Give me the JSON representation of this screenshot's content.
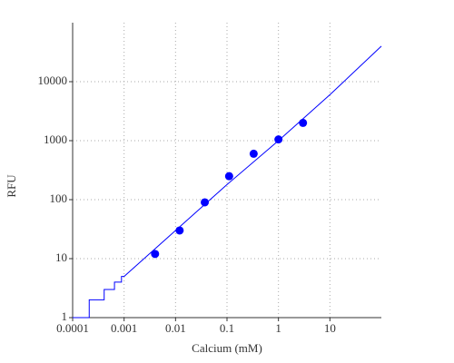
{
  "chart_data": {
    "type": "scatter",
    "x_label": "Calcium (mM)",
    "y_label": "RFU",
    "x": [
      0.004,
      0.012,
      0.037,
      0.11,
      0.33,
      1,
      3
    ],
    "values": [
      12,
      30,
      90,
      250,
      600,
      1050,
      2000
    ],
    "color": "#0000ff",
    "fit": {
      "x": [
        0.0001,
        0.00021,
        0.00021,
        0.00041,
        0.00041,
        0.00065,
        0.00065,
        0.00089,
        0.00089,
        0.001,
        0.01,
        0.1,
        1,
        10,
        100
      ],
      "values": [
        1,
        1,
        2,
        2,
        3,
        3,
        4,
        4,
        5,
        5,
        30,
        180,
        1000,
        6000,
        40000
      ]
    },
    "xscale": "log",
    "yscale": "log",
    "xlim": [
      0.0001,
      100
    ],
    "ylim": [
      1,
      100000
    ],
    "xticks": [
      0.0001,
      0.001,
      0.01,
      0.1,
      1,
      10
    ],
    "yticks": [
      1,
      10,
      100,
      1000,
      10000
    ],
    "grid": true
  }
}
